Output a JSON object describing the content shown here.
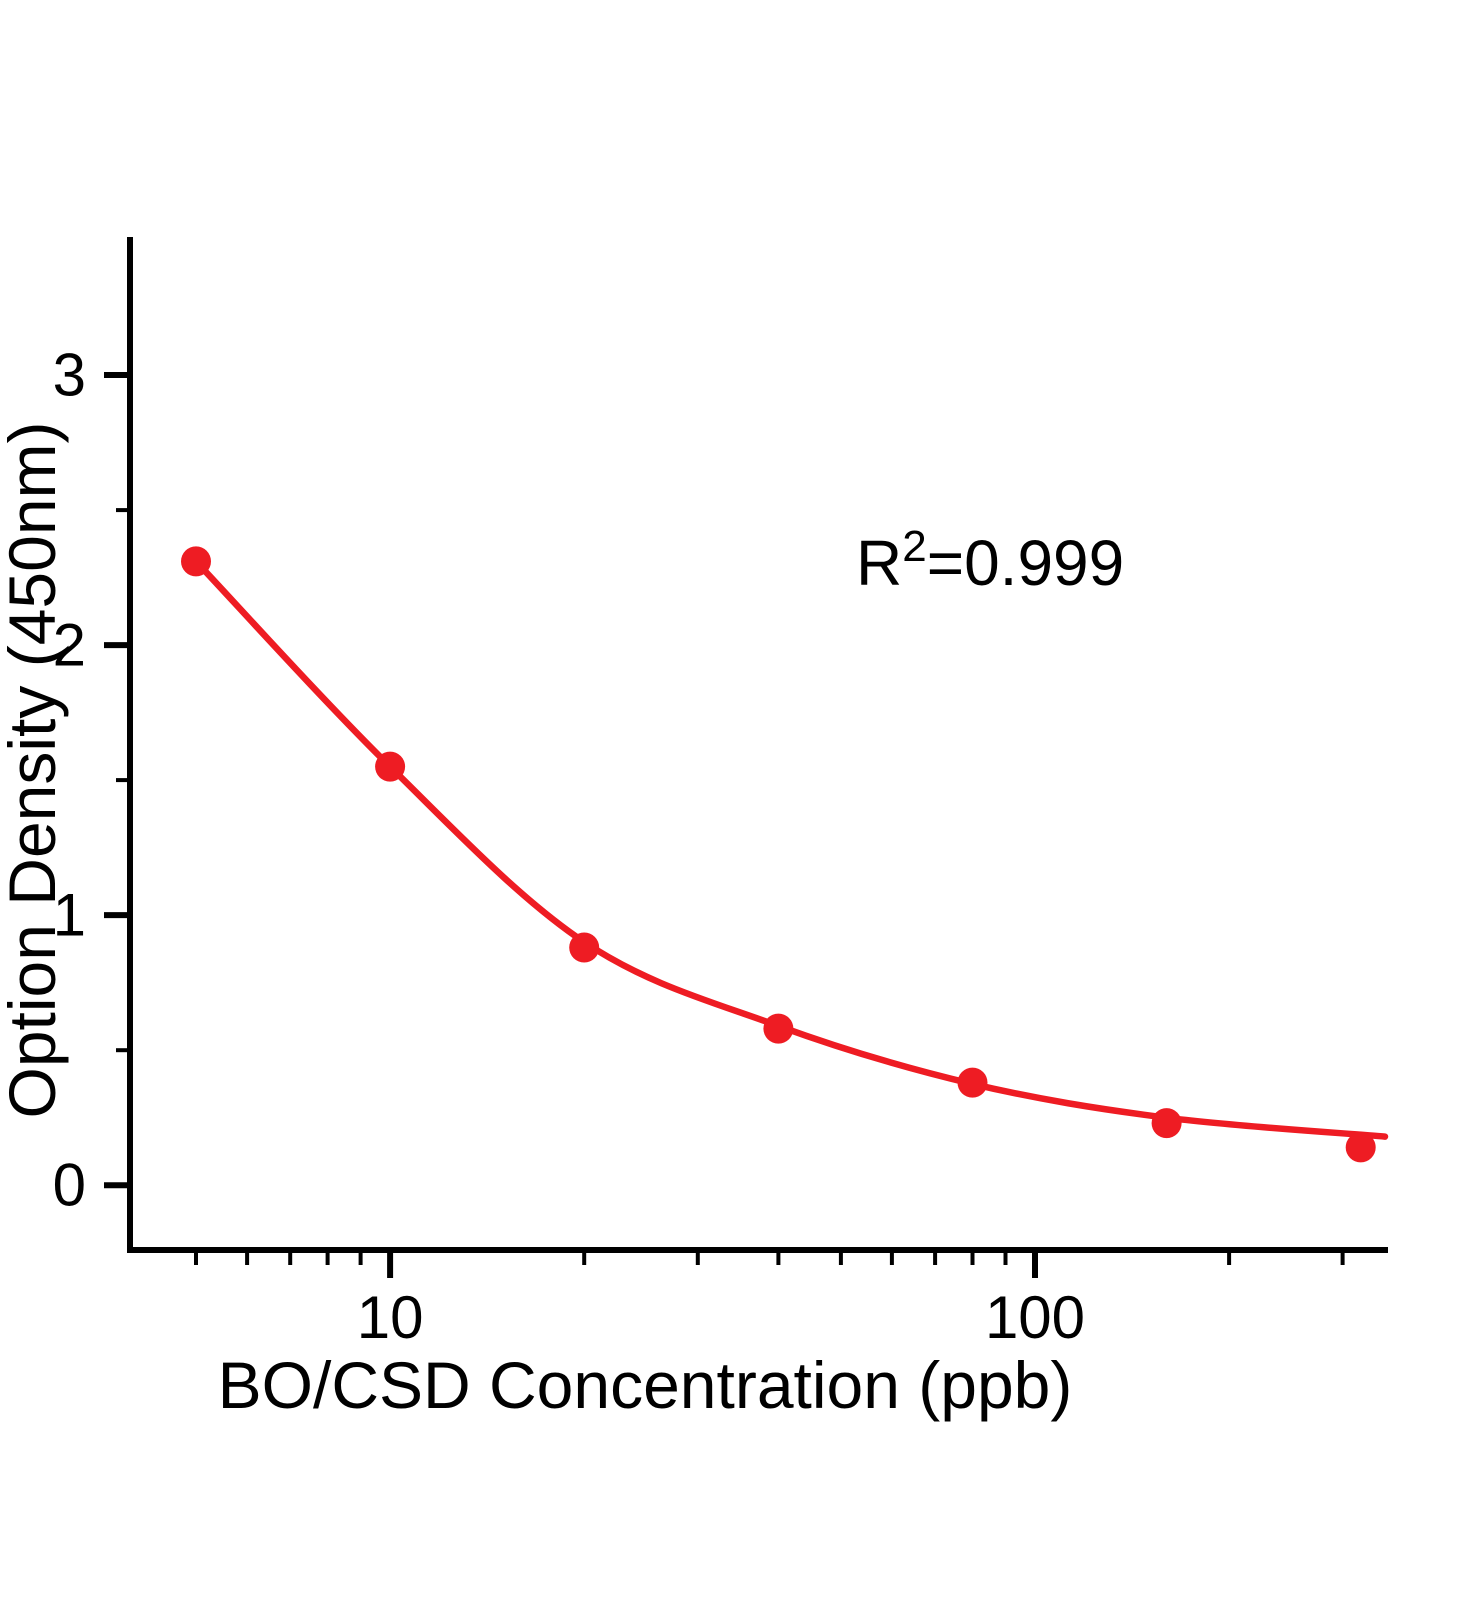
{
  "figure": {
    "kind": "elisa-standard-curve"
  },
  "chart_data": {
    "type": "scatter",
    "x_scale": "log",
    "x": [
      5,
      10,
      20,
      40,
      80,
      160,
      320
    ],
    "y": [
      2.31,
      1.55,
      0.88,
      0.58,
      0.38,
      0.23,
      0.14
    ],
    "fit_curve": {
      "x": [
        5,
        10,
        20,
        40,
        80,
        160,
        349
      ],
      "y": [
        2.31,
        1.55,
        0.9,
        0.59,
        0.375,
        0.25,
        0.18
      ]
    },
    "title": "",
    "xlabel": "BO/CSD Concentration  (ppb)",
    "ylabel": "Option Density  (450nm)",
    "annotation": {
      "prefix": "R",
      "sup": "2",
      "suffix": "=0.999"
    },
    "xlim": [
      3.95,
      349
    ],
    "ylim": [
      -0.24,
      3.5
    ],
    "x_major_ticks": [
      10,
      100
    ],
    "x_major_tick_labels": [
      "10",
      "100"
    ],
    "x_minor_ticks": [
      5,
      6,
      7,
      8,
      9,
      20,
      30,
      40,
      50,
      60,
      70,
      80,
      90,
      200,
      300
    ],
    "y_major_ticks": [
      0,
      1,
      2,
      3
    ],
    "y_major_tick_labels": [
      "0",
      "1",
      "2",
      "3"
    ],
    "y_minor_ticks": [
      0.5,
      1.5,
      2.5
    ],
    "grid": false,
    "legend": null,
    "colors": {
      "series": "#ee1c23",
      "axis": "#000000",
      "text": "#000000",
      "background": "#ffffff"
    }
  }
}
